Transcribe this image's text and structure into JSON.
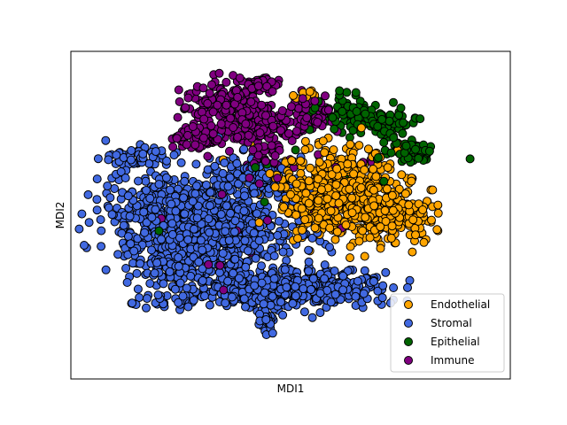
{
  "chart_data": {
    "type": "scatter",
    "title": "",
    "xlabel": "MDI1",
    "ylabel": "MDI2",
    "xlim": [
      -50,
      50
    ],
    "ylim": [
      -50,
      50
    ],
    "grid": false,
    "ticks": false,
    "legend_position": "lower right",
    "series": [
      {
        "name": "Endothelial",
        "color": "#ffa500",
        "clusters": [
          {
            "cx": 9,
            "cy": 10,
            "sx": 7,
            "sy": 6,
            "n": 320
          },
          {
            "cx": 17,
            "cy": 2,
            "sx": 6,
            "sy": 5,
            "n": 240
          },
          {
            "cx": 25,
            "cy": 0,
            "sx": 4,
            "sy": 3,
            "n": 120
          },
          {
            "cx": 5,
            "cy": 2,
            "sx": 4,
            "sy": 4,
            "n": 80
          },
          {
            "cx": 3,
            "cy": 37,
            "sx": 1.5,
            "sy": 0.8,
            "n": 12
          }
        ]
      },
      {
        "name": "Stromal",
        "color": "#4169e1",
        "clusters": [
          {
            "cx": -27,
            "cy": 0,
            "sx": 8,
            "sy": 7,
            "n": 420
          },
          {
            "cx": -13,
            "cy": -4,
            "sx": 8,
            "sy": 7,
            "n": 380
          },
          {
            "cx": -24,
            "cy": -14,
            "sx": 6,
            "sy": 5,
            "n": 220
          },
          {
            "cx": -5,
            "cy": -22,
            "sx": 9,
            "sy": 3,
            "n": 260
          },
          {
            "cx": 8,
            "cy": -22,
            "sx": 8,
            "sy": 3,
            "n": 200
          },
          {
            "cx": -9,
            "cy": 12,
            "sx": 5,
            "sy": 3,
            "n": 120
          },
          {
            "cx": -5,
            "cy": -31,
            "sx": 1.5,
            "sy": 2,
            "n": 35
          },
          {
            "cx": -35,
            "cy": 18,
            "sx": 3,
            "sy": 1.5,
            "n": 45
          },
          {
            "cx": -29,
            "cy": -26,
            "sx": 4,
            "sy": 1.2,
            "n": 30
          }
        ]
      },
      {
        "name": "Epithelial",
        "color": "#006400",
        "clusters": [
          {
            "cx": 14,
            "cy": 31,
            "sx": 4,
            "sy": 2.5,
            "n": 90
          },
          {
            "cx": 22,
            "cy": 28,
            "sx": 3,
            "sy": 2,
            "n": 60
          },
          {
            "cx": 28,
            "cy": 19,
            "sx": 3,
            "sy": 2,
            "n": 55
          },
          {
            "cx": 8,
            "cy": 12,
            "sx": 10,
            "sy": 8,
            "n": 10
          },
          {
            "cx": -22,
            "cy": -5,
            "sx": 12,
            "sy": 10,
            "n": 6
          }
        ]
      },
      {
        "name": "Immune",
        "color": "#800080",
        "clusters": [
          {
            "cx": -15,
            "cy": 33,
            "sx": 5,
            "sy": 4,
            "n": 200
          },
          {
            "cx": -4,
            "cy": 28,
            "sx": 5,
            "sy": 3,
            "n": 130
          },
          {
            "cx": -21,
            "cy": 23,
            "sx": 3,
            "sy": 2,
            "n": 60
          },
          {
            "cx": -7,
            "cy": 40,
            "sx": 2,
            "sy": 1.2,
            "n": 40
          },
          {
            "cx": -6,
            "cy": 18,
            "sx": 2.5,
            "sy": 3.5,
            "n": 45
          },
          {
            "cx": 5,
            "cy": 32,
            "sx": 2,
            "sy": 2,
            "n": 55
          },
          {
            "cx": 10,
            "cy": 8,
            "sx": 12,
            "sy": 8,
            "n": 14
          },
          {
            "cx": -20,
            "cy": -10,
            "sx": 12,
            "sy": 8,
            "n": 10
          }
        ]
      }
    ]
  }
}
